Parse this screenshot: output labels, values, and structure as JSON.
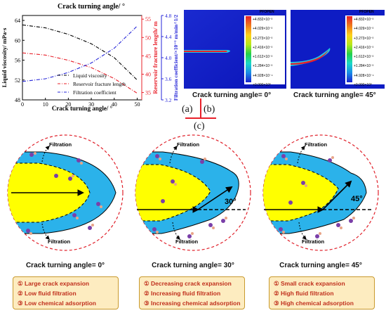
{
  "chart_data": {
    "type": "line",
    "title": "Crack turning angle/ °",
    "xlabel": "Crack turning angle/ °",
    "x_ticks": [
      "0",
      "10",
      "20",
      "30",
      "40",
      "50"
    ],
    "xlim": [
      0,
      52
    ],
    "left_axis": {
      "label": "Liquid viscosity/ mPa·s",
      "ticks": [
        "48",
        "52",
        "56",
        "60",
        "64"
      ],
      "ylim": [
        48,
        65
      ]
    },
    "right_axis_red": {
      "label": "Reservoir fracture length/ m",
      "ticks": [
        "35",
        "40",
        "45",
        "50",
        "55"
      ],
      "ylim": [
        33,
        56
      ]
    },
    "right_axis_blue": {
      "label": "Filtration coefficient/×10⁻² m/min^1/2",
      "ticks": [
        "3.2",
        "3.6",
        "4.0",
        "4.4",
        "4.8"
      ],
      "ylim": [
        3.2,
        4.8
      ]
    },
    "series": [
      {
        "name": "Liquid viscosity",
        "axis": "left",
        "color": "#000000",
        "x": [
          0,
          10,
          20,
          30,
          40,
          50
        ],
        "y": [
          63.1,
          62.5,
          61.2,
          59.3,
          56.5,
          52.0
        ]
      },
      {
        "name": "Reservoir fracture length",
        "axis": "right_red",
        "color": "#e8202a",
        "x": [
          0,
          10,
          20,
          30,
          40,
          50
        ],
        "y": [
          45.8,
          45.2,
          43.8,
          41.8,
          38.8,
          34.8
        ]
      },
      {
        "name": "Filtration coefficient",
        "axis": "right_blue",
        "color": "#2525d8",
        "x": [
          0,
          10,
          20,
          30,
          40,
          50
        ],
        "y": [
          3.55,
          3.6,
          3.72,
          3.9,
          4.18,
          4.6
        ]
      }
    ],
    "legend_position": "bottom-left",
    "grid": false
  },
  "simulations": [
    {
      "caption": "Crack turning angle= 0°",
      "legend_title": "PFOPEN",
      "legend_values": [
        "+4.832×10⁻³",
        "+4.029×10⁻³",
        "+3.273×10⁻³",
        "+2.416×10⁻³",
        "+1.612×10⁻³",
        "+1.284×10⁻³",
        "+4.928×10⁻⁴",
        "+0.000×10⁰"
      ]
    },
    {
      "caption": "Crack turning angle= 45°",
      "legend_title": "PFOPEN",
      "legend_values": [
        "+4.832×10⁻³",
        "+4.029×10⁻³",
        "+3.273×10⁻³",
        "+2.416×10⁻³",
        "+1.612×10⁻³",
        "+1.284×10⁻³",
        "+4.928×10⁻⁴",
        "+0.000×10⁰"
      ]
    }
  ],
  "panel_labels": {
    "a": "(a)",
    "b": "(b)",
    "c": "(c)"
  },
  "schematics": [
    {
      "caption": "Crack turning angle= 0°",
      "angle_label": "",
      "filtration_top": "Filtration",
      "filtration_bottom": "Filtration",
      "notes": [
        "① Large crack expansion",
        "② Low fluid filtration",
        "③ Low chemical adsorption"
      ]
    },
    {
      "caption": "Crack turning angle= 30°",
      "angle_label": "30°",
      "filtration_top": "Filtration",
      "filtration_bottom": "Filtration",
      "notes": [
        "① Decreasing crack expansion",
        "② Increasing fluid filtration",
        "③ Increasing chemical adsorption"
      ]
    },
    {
      "caption": "Crack turning angle= 45°",
      "angle_label": "45°",
      "filtration_top": "Filtration",
      "filtration_bottom": "Filtration",
      "notes": [
        "① Small crack expansion",
        "② High fluid filtration",
        "③ High chemical adsorption"
      ]
    }
  ],
  "colors": {
    "crack_yellow": "#ffff00",
    "filtration_blue": "#2bb2ea",
    "circle_red": "#e0202a",
    "note_bg": "#fdecc0",
    "note_text": "#c0301d"
  }
}
